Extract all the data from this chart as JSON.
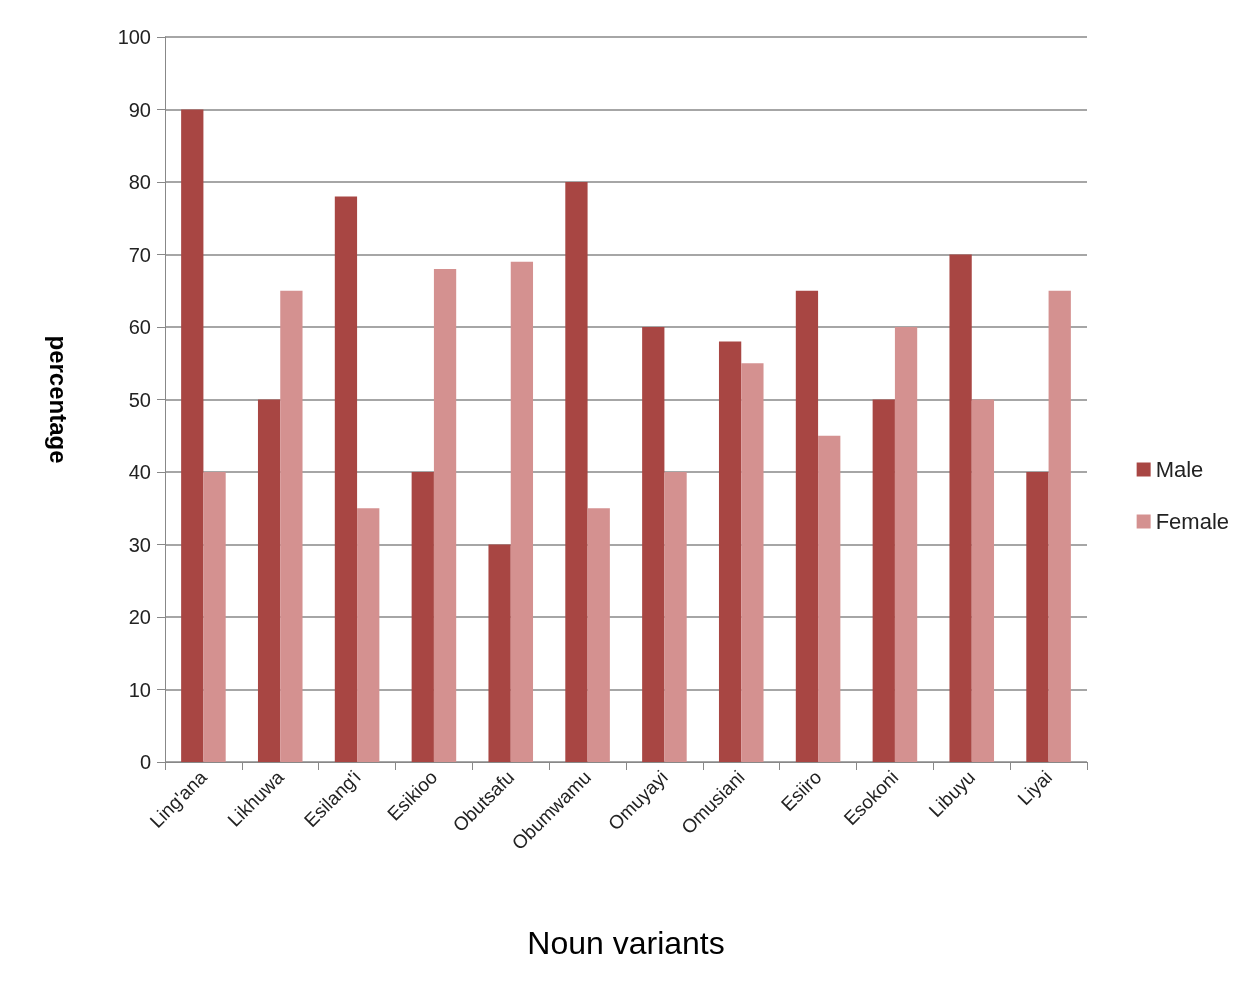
{
  "chart_data": {
    "type": "bar",
    "xlabel": "Noun variants",
    "ylabel": "percentage",
    "categories": [
      "Ling'ana",
      "Likhuwa",
      "Esilang'i",
      "Esikioo",
      "Obutsafu",
      "Obumwamu",
      "Omuyayi",
      "Omusiani",
      "Esiiro",
      "Esokoni",
      "Libuyu",
      "Liyai"
    ],
    "series": [
      {
        "name": "Male",
        "color": "#a84643",
        "values": [
          90,
          50,
          78,
          40,
          30,
          80,
          60,
          58,
          65,
          50,
          70,
          40
        ]
      },
      {
        "name": "Female",
        "color": "#d49190",
        "values": [
          40,
          65,
          35,
          68,
          69,
          35,
          40,
          55,
          45,
          60,
          50,
          65
        ]
      }
    ],
    "ylim": [
      0,
      100
    ],
    "yticks": [
      0,
      10,
      20,
      30,
      40,
      50,
      60,
      70,
      80,
      90,
      100
    ],
    "grid": "y",
    "legend": "right"
  }
}
